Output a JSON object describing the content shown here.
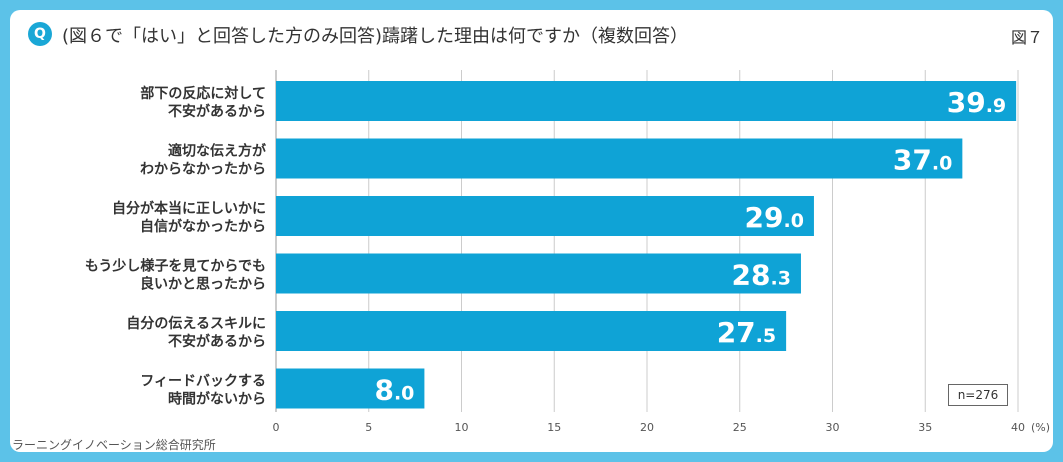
{
  "header": {
    "badge": "Q",
    "title": "(図６で「はい」と回答した方のみ回答)躊躇した理由は何ですか（複数回答）",
    "figure_label": "図７"
  },
  "source": "ラーニングイノベーション総合研究所",
  "sample": "n=276",
  "colors": {
    "bar": "#0fa3d6",
    "frame": "#5cc2e8",
    "grid": "#cccccc"
  },
  "chart_data": {
    "type": "bar",
    "orientation": "horizontal",
    "categories": [
      [
        "部下の反応に対して",
        "不安があるから"
      ],
      [
        "適切な伝え方が",
        "わからなかったから"
      ],
      [
        "自分が本当に正しいかに",
        "自信がなかったから"
      ],
      [
        "もう少し様子を見てからでも",
        "良いかと思ったから"
      ],
      [
        "自分の伝えるスキルに",
        "不安があるから"
      ],
      [
        "フィードバックする",
        "時間がないから"
      ]
    ],
    "values": [
      39.9,
      37.0,
      29.0,
      28.3,
      27.5,
      8.0
    ],
    "value_labels": [
      [
        "39",
        ".9"
      ],
      [
        "37",
        ".0"
      ],
      [
        "29",
        ".0"
      ],
      [
        "28",
        ".3"
      ],
      [
        "27",
        ".5"
      ],
      [
        "8",
        ".0"
      ]
    ],
    "xlim": [
      0,
      40
    ],
    "xticks": [
      "0",
      "5",
      "10",
      "15",
      "20",
      "25",
      "30",
      "35",
      "40"
    ],
    "xunit": "(%)"
  }
}
